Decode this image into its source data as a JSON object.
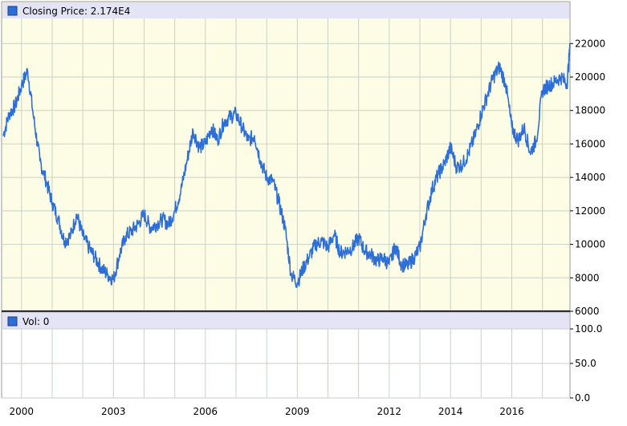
{
  "chart_data": [
    {
      "type": "line",
      "legend": "Closing Price: 2.174E4",
      "legend_placement": "top-left",
      "y_ticks": [
        "6000",
        "8000",
        "10000",
        "12000",
        "14000",
        "16000",
        "18000",
        "20000",
        "22000"
      ],
      "y_tick_values": [
        6000,
        8000,
        10000,
        12000,
        14000,
        16000,
        18000,
        20000,
        22000
      ],
      "ylim": [
        6000,
        23500
      ],
      "xlim": [
        1999.35,
        2017.9
      ],
      "grid": true,
      "colors": {
        "line": "#2d6fd6",
        "plot_bg": "#fdfde6",
        "legend_bar": "#e4e4f6",
        "grid": "#c8d2c8"
      },
      "series": [
        {
          "name": "Closing Price",
          "x": [
            1999.4,
            1999.6,
            1999.8,
            2000.0,
            2000.2,
            2000.4,
            2000.6,
            2000.8,
            2001.0,
            2001.2,
            2001.4,
            2001.6,
            2001.8,
            2002.0,
            2002.2,
            2002.4,
            2002.6,
            2002.8,
            2003.0,
            2003.2,
            2003.4,
            2003.6,
            2003.8,
            2004.0,
            2004.2,
            2004.4,
            2004.6,
            2004.8,
            2005.0,
            2005.2,
            2005.4,
            2005.6,
            2005.8,
            2006.0,
            2006.2,
            2006.4,
            2006.6,
            2006.8,
            2007.0,
            2007.2,
            2007.4,
            2007.6,
            2007.8,
            2008.0,
            2008.2,
            2008.4,
            2008.6,
            2008.8,
            2009.0,
            2009.2,
            2009.4,
            2009.6,
            2009.8,
            2010.0,
            2010.2,
            2010.4,
            2010.6,
            2010.8,
            2011.0,
            2011.2,
            2011.4,
            2011.6,
            2011.8,
            2012.0,
            2012.2,
            2012.4,
            2012.6,
            2012.8,
            2013.0,
            2013.2,
            2013.4,
            2013.6,
            2013.8,
            2014.0,
            2014.2,
            2014.4,
            2014.6,
            2014.8,
            2015.0,
            2015.2,
            2015.4,
            2015.6,
            2015.8,
            2016.0,
            2016.2,
            2016.4,
            2016.6,
            2016.8,
            2017.0,
            2017.2,
            2017.4,
            2017.6,
            2017.8,
            2017.9
          ],
          "values": [
            16500,
            17800,
            18300,
            19500,
            20400,
            17500,
            15000,
            13800,
            12500,
            11500,
            10200,
            10500,
            11800,
            10500,
            9800,
            9200,
            8600,
            8200,
            7900,
            9400,
            10500,
            10800,
            11200,
            11800,
            11000,
            11200,
            11500,
            11200,
            12000,
            13200,
            15000,
            16800,
            15800,
            16000,
            17000,
            16200,
            17300,
            17600,
            17800,
            17000,
            16200,
            16500,
            15000,
            14000,
            13800,
            12500,
            11000,
            8200,
            7700,
            8600,
            9300,
            10000,
            10200,
            9800,
            10600,
            9500,
            9600,
            9800,
            10400,
            9600,
            9400,
            9000,
            9200,
            8800,
            9900,
            8800,
            8700,
            9200,
            9800,
            11800,
            13300,
            14200,
            14800,
            15800,
            14600,
            14800,
            15500,
            16500,
            17800,
            18900,
            20000,
            20600,
            19600,
            17000,
            16200,
            17000,
            15500,
            16200,
            19200,
            19500,
            19700,
            20000,
            19600,
            21740
          ]
        }
      ]
    },
    {
      "type": "bar",
      "legend": "Vol: 0",
      "legend_placement": "top-left",
      "y_ticks": [
        "0.0",
        "50.0",
        "100.0"
      ],
      "y_tick_values": [
        0,
        50,
        100
      ],
      "ylim": [
        0,
        100
      ],
      "x_ticks": [
        "2000",
        "2003",
        "2006",
        "2009",
        "2012",
        "2014",
        "2016"
      ],
      "x_tick_values": [
        2000,
        2003,
        2006,
        2009,
        2012,
        2014,
        2016
      ],
      "grid": true,
      "series": [
        {
          "name": "Vol",
          "values": []
        }
      ]
    }
  ]
}
